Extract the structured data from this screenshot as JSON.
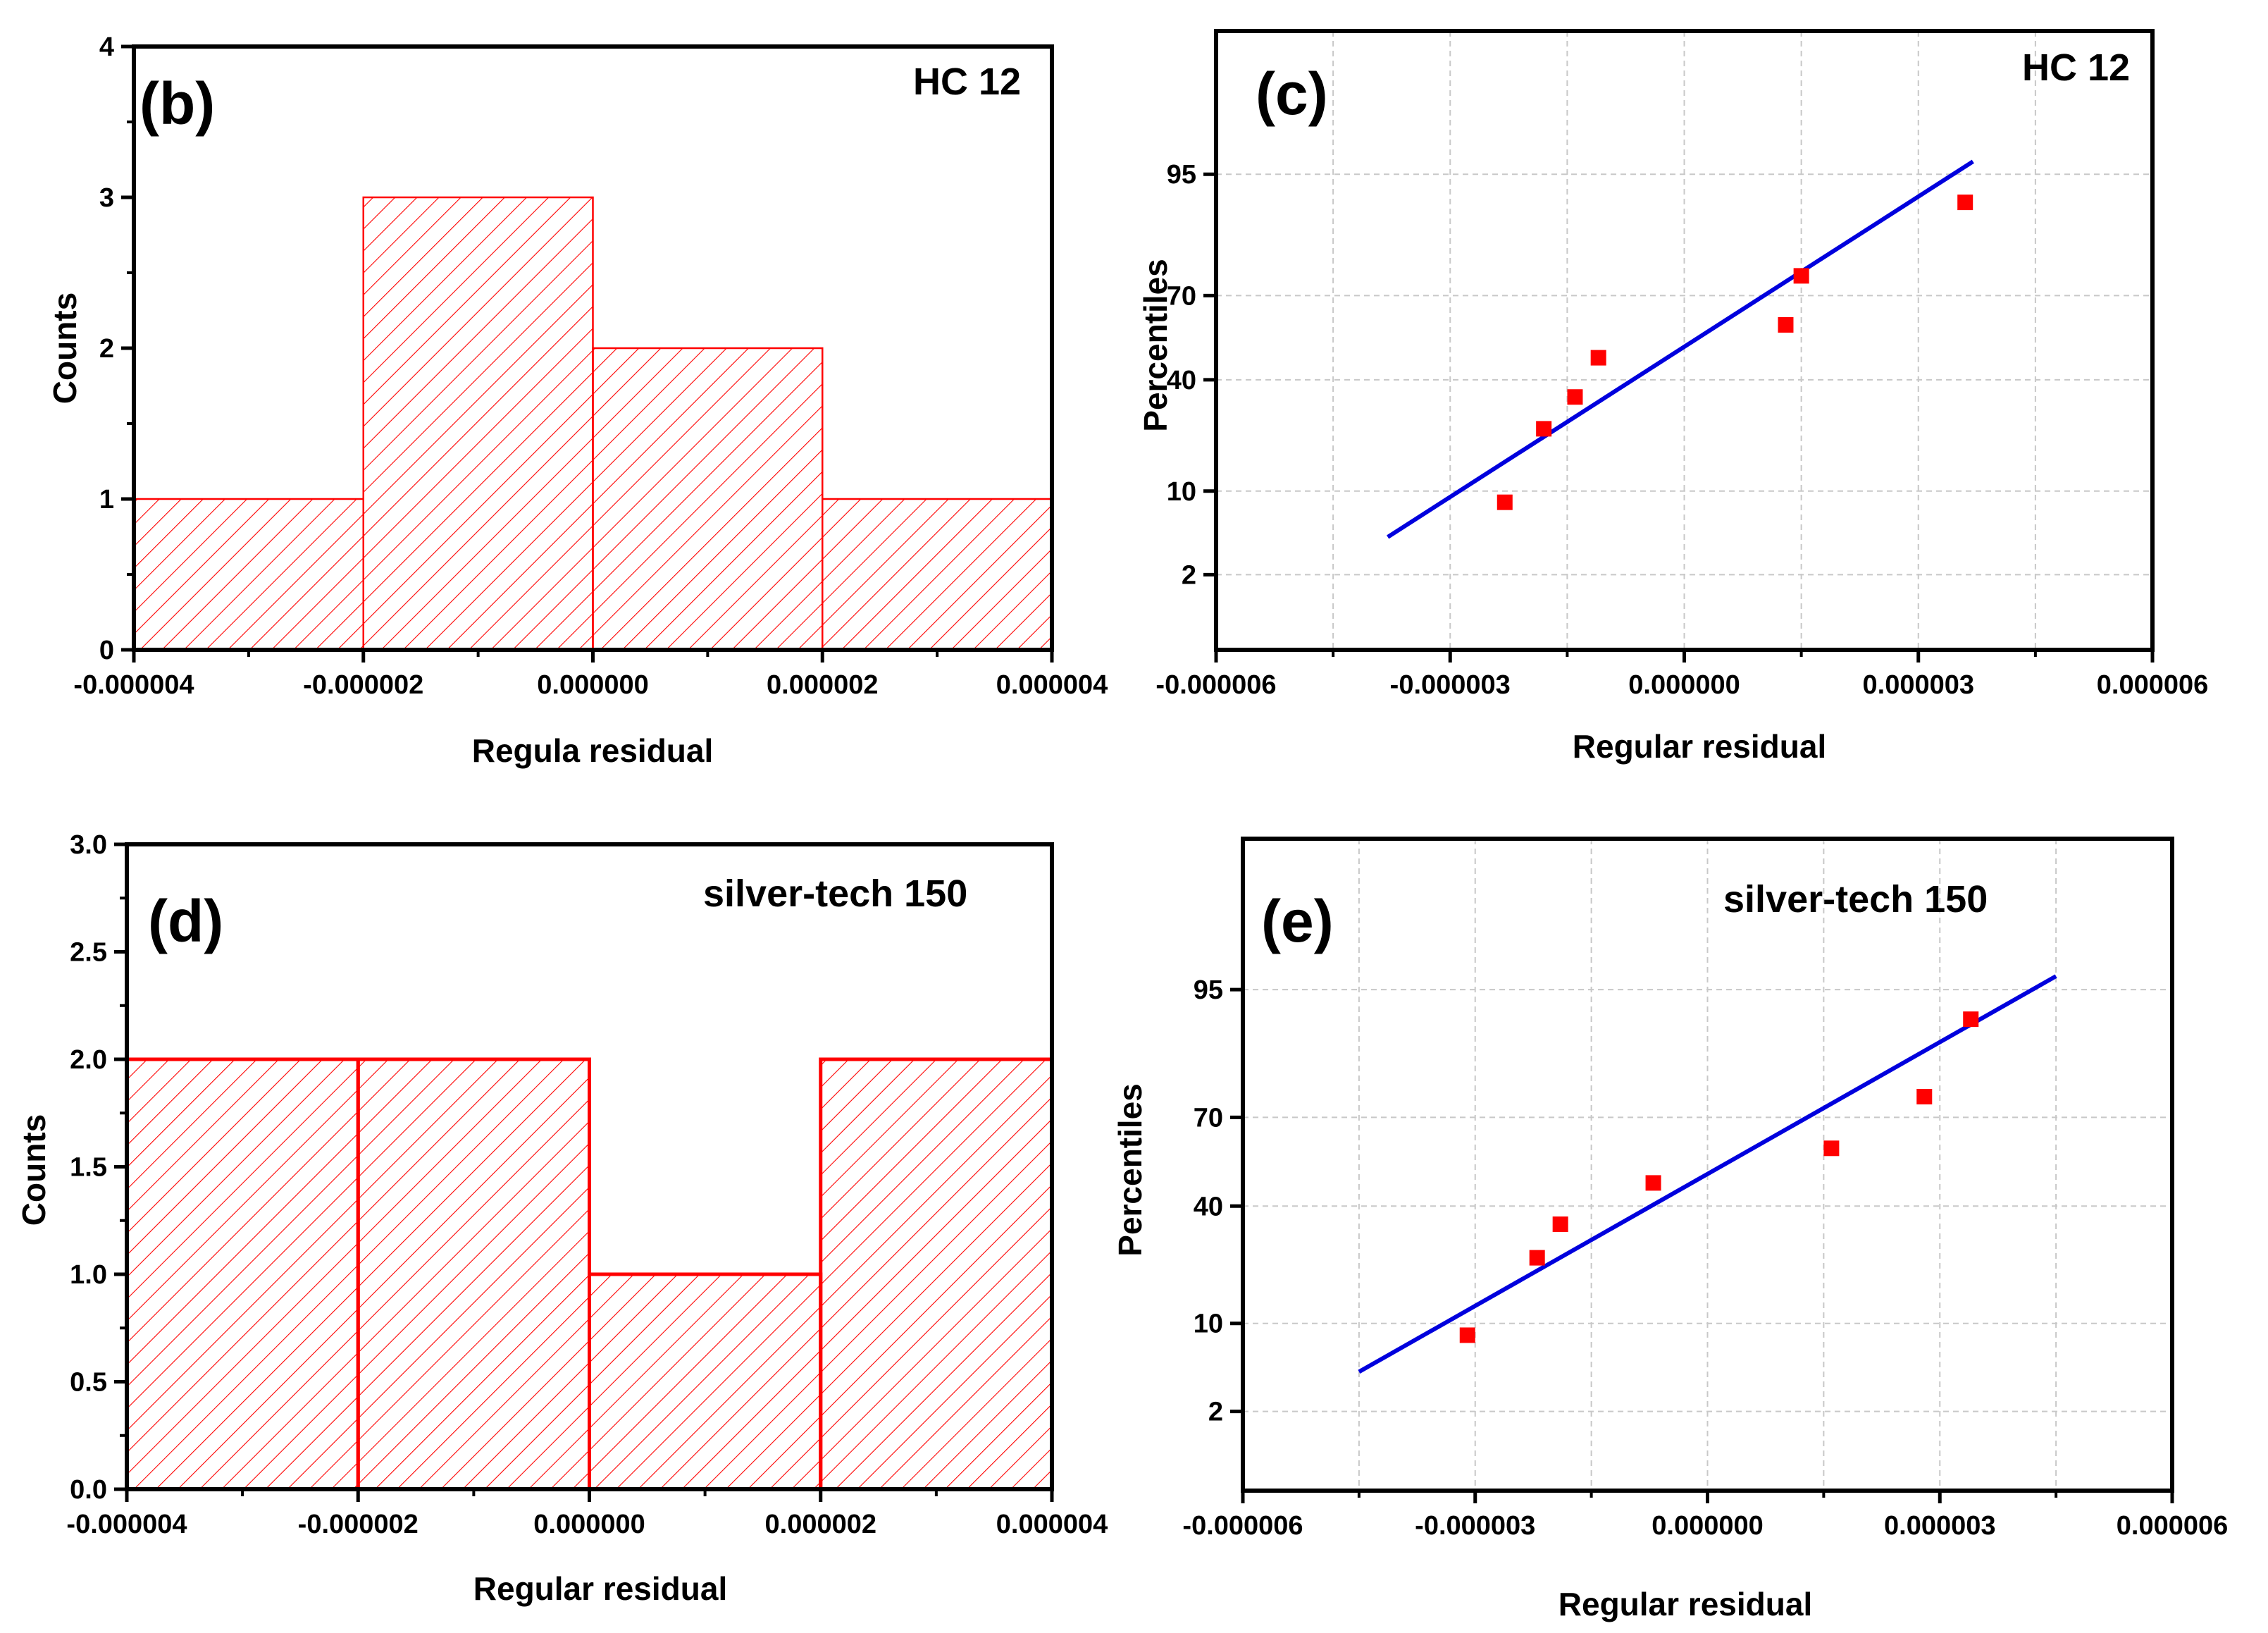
{
  "colors": {
    "bar": "#ff0000",
    "fit_line": "#0000dd",
    "point": "#ff0000",
    "grid": "#c8c8c8",
    "axis": "#000000"
  },
  "chart_data": [
    {
      "type": "bar",
      "panel": "(b)",
      "tag": "HC 12",
      "xlabel": "Regula residual",
      "ylabel": "Counts",
      "bins": [
        [
          -4e-06,
          -2e-06
        ],
        [
          -2e-06,
          0
        ],
        [
          0,
          2e-06
        ],
        [
          2e-06,
          4e-06
        ]
      ],
      "values": [
        1,
        3,
        2,
        1
      ],
      "xlim": [
        -4e-06,
        4e-06
      ],
      "ylim": [
        0,
        4
      ],
      "xticks": [
        "-0.000004",
        "-0.000002",
        "0.000000",
        "0.000002",
        "0.000004"
      ],
      "yticks": [
        "0",
        "1",
        "2",
        "3",
        "4"
      ],
      "grid": false
    },
    {
      "type": "scatter",
      "panel": "(c)",
      "tag": "HC 12",
      "subtype": "normal probability plot",
      "xlabel": "Regular residual",
      "ylabel": "Percentiles",
      "xlim": [
        -6e-06,
        6e-06
      ],
      "xticks": [
        "-0.000006",
        "-0.000003",
        "0.000000",
        "0.000003",
        "0.000006"
      ],
      "yticks": [
        "2",
        "10",
        "40",
        "70",
        "95"
      ],
      "points": [
        {
          "x": -2.3e-06,
          "y": 8.3
        },
        {
          "x": -1.8e-06,
          "y": 24
        },
        {
          "x": -1.4e-06,
          "y": 34
        },
        {
          "x": -1.1e-06,
          "y": 48
        },
        {
          "x": 1.3e-06,
          "y": 60
        },
        {
          "x": 1.5e-06,
          "y": 76
        },
        {
          "x": 3.6e-06,
          "y": 91.7
        }
      ],
      "fit_line": {
        "x": [
          -3.8e-06,
          3.7e-06
        ],
        "y": [
          4.4,
          96.1
        ]
      },
      "grid": true
    },
    {
      "type": "bar",
      "panel": "(d)",
      "tag": "silver-tech 150",
      "xlabel": "Regular residual",
      "ylabel": "Counts",
      "bins": [
        [
          -4e-06,
          -2e-06
        ],
        [
          -2e-06,
          0
        ],
        [
          0,
          2e-06
        ],
        [
          2e-06,
          4e-06
        ]
      ],
      "values": [
        2,
        2,
        1,
        2
      ],
      "xlim": [
        -4e-06,
        4e-06
      ],
      "ylim": [
        0,
        3
      ],
      "xticks": [
        "-0.000004",
        "-0.000002",
        "0.000000",
        "0.000002",
        "0.000004"
      ],
      "yticks": [
        "0.0",
        "0.5",
        "1.0",
        "1.5",
        "2.0",
        "2.5",
        "3.0"
      ],
      "grid": false
    },
    {
      "type": "scatter",
      "panel": "(e)",
      "tag": "silver-tech 150",
      "subtype": "normal probability plot",
      "xlabel": "Regular residual",
      "ylabel": "Percentiles",
      "xlim": [
        -6e-06,
        6e-06
      ],
      "xticks": [
        "-0.000006",
        "-0.000003",
        "0.000000",
        "0.000003",
        "0.000006"
      ],
      "yticks": [
        "2",
        "10",
        "40",
        "70",
        "95"
      ],
      "points": [
        {
          "x": -3.1e-06,
          "y": 8.3
        },
        {
          "x": -2.2e-06,
          "y": 24
        },
        {
          "x": -1.9e-06,
          "y": 34
        },
        {
          "x": -7e-07,
          "y": 48
        },
        {
          "x": 1.6e-06,
          "y": 60
        },
        {
          "x": 2.8e-06,
          "y": 76
        },
        {
          "x": 3.4e-06,
          "y": 91.7
        }
      ],
      "fit_line": {
        "x": [
          -4.5e-06,
          4.5e-06
        ],
        "y": [
          4.4,
          96.1
        ]
      },
      "grid": true
    }
  ]
}
